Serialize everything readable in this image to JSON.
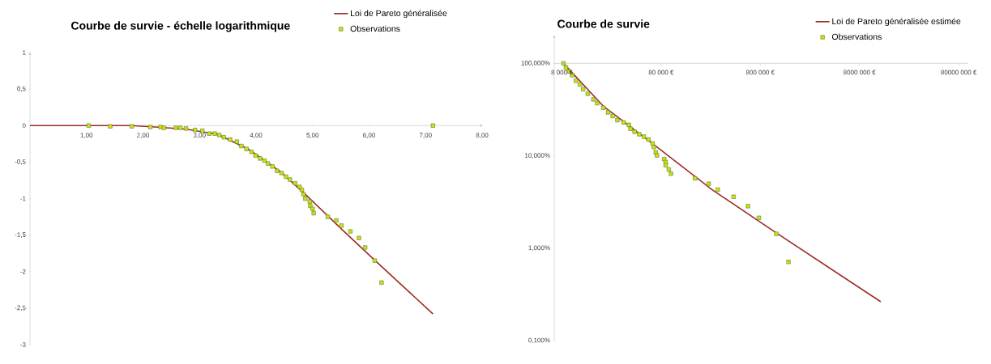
{
  "chart_data": [
    {
      "type": "scatter",
      "title": "Courbe de survie - échelle logarithmique",
      "xlim": [
        0,
        8
      ],
      "ylim": [
        -3,
        1
      ],
      "xticks": [
        {
          "value": 1,
          "label": "1,00"
        },
        {
          "value": 2,
          "label": "2,00"
        },
        {
          "value": 3,
          "label": "3,00"
        },
        {
          "value": 4,
          "label": "4,00"
        },
        {
          "value": 5,
          "label": "5,00"
        },
        {
          "value": 6,
          "label": "6,00"
        },
        {
          "value": 7,
          "label": "7,00"
        },
        {
          "value": 8,
          "label": "8,00"
        }
      ],
      "yticks": [
        -3,
        {
          "value": -2.5,
          "label": "-2,5"
        },
        -2,
        {
          "value": -1.5,
          "label": "-1,5"
        },
        -1,
        {
          "value": -0.5,
          "label": "-0,5"
        },
        0,
        {
          "value": 0.5,
          "label": "0,5"
        },
        1
      ],
      "legend": "top right",
      "grid": false,
      "series": [
        {
          "name": "Loi de Pareto généralisée",
          "type": "line",
          "color": "#9b2d24",
          "marker": "none",
          "x": [
            0,
            1.78,
            2.22,
            2.77,
            3.32,
            3.88,
            4.43,
            4.87,
            5.53,
            6.08,
            7.13
          ],
          "values": [
            0,
            0,
            -0.02,
            -0.05,
            -0.12,
            -0.33,
            -0.63,
            -0.94,
            -1.43,
            -1.83,
            -2.58
          ]
        },
        {
          "name": "Observations",
          "type": "scatter",
          "color": "#f2d000",
          "marker": "square",
          "x": [
            1.04,
            1.42,
            1.8,
            2.13,
            2.31,
            2.37,
            2.58,
            2.66,
            2.76,
            2.92,
            3.05,
            3.17,
            3.27,
            3.35,
            3.43,
            3.54,
            3.66,
            3.74,
            3.83,
            3.92,
            3.99,
            4.07,
            4.15,
            4.21,
            4.29,
            4.37,
            4.45,
            4.53,
            4.6,
            4.69,
            4.77,
            4.81,
            4.84,
            4.87,
            4.95,
            4.96,
            5.0,
            5.02,
            5.27,
            5.42,
            5.51,
            5.67,
            5.82,
            5.93,
            6.1,
            6.22,
            7.13
          ],
          "values": [
            0,
            -0.01,
            -0.01,
            -0.02,
            -0.02,
            -0.03,
            -0.03,
            -0.03,
            -0.04,
            -0.06,
            -0.07,
            -0.11,
            -0.11,
            -0.13,
            -0.16,
            -0.19,
            -0.22,
            -0.28,
            -0.32,
            -0.36,
            -0.41,
            -0.45,
            -0.48,
            -0.52,
            -0.56,
            -0.62,
            -0.65,
            -0.7,
            -0.74,
            -0.79,
            -0.84,
            -0.88,
            -0.94,
            -1.0,
            -1.04,
            -1.1,
            -1.14,
            -1.2,
            -1.25,
            -1.3,
            -1.37,
            -1.45,
            -1.54,
            -1.67,
            -1.85,
            -2.15,
            0
          ]
        }
      ]
    },
    {
      "type": "scatter",
      "title": "Courbe de survie",
      "log": "xy",
      "xlim": [
        6700,
        100000000
      ],
      "ylim": [
        0.1,
        200
      ],
      "xticks": [
        {
          "value": 8000,
          "label": "8 000 €"
        },
        {
          "value": 80000,
          "label": "80 000 €"
        },
        {
          "value": 800000,
          "label": "800 000 €"
        },
        {
          "value": 8000000,
          "label": "8000 000 €"
        },
        {
          "value": 80000000,
          "label": "80000 000 €"
        }
      ],
      "yticks": [
        {
          "value": 0.1,
          "label": "0,100%"
        },
        {
          "value": 1,
          "label": "1,000%"
        },
        {
          "value": 10,
          "label": "10,000%"
        },
        {
          "value": 100,
          "label": "100,000%"
        }
      ],
      "legend": "top right",
      "grid": false,
      "series": [
        {
          "name": "Loi de Pareto généralisée estimée",
          "type": "line",
          "color": "#9b2d24",
          "marker": "none",
          "x": [
            8300,
            20940,
            71600,
            263600,
            1119000,
            13100000
          ],
          "values": [
            100,
            34.4,
            12.6,
            4.27,
            1.5,
            0.263
          ]
        },
        {
          "name": "Observations",
          "type": "scatter",
          "color": "#f2d000",
          "marker": "square",
          "x": [
            8300,
            8790,
            9450,
            10150,
            11070,
            12160,
            13090,
            14590,
            16600,
            18120,
            20940,
            23350,
            26020,
            28990,
            33500,
            37900,
            39300,
            43200,
            48100,
            53600,
            59800,
            65700,
            67600,
            70600,
            72700,
            85900,
            89000,
            89000,
            95700,
            100700,
            175800,
            241600,
            298000,
            430600,
            601000,
            774000,
            1161000,
            1539000
          ],
          "values": [
            100,
            90.4,
            81.8,
            74.5,
            64.9,
            59.1,
            52.6,
            46.9,
            40.8,
            37.1,
            33.1,
            29.5,
            26.9,
            24.3,
            23.0,
            21.6,
            19.6,
            18.2,
            17.1,
            16.1,
            15.0,
            13.6,
            12.4,
            10.9,
            10.1,
            9.2,
            8.55,
            7.9,
            7.1,
            6.4,
            5.7,
            4.98,
            4.3,
            3.6,
            2.85,
            2.13,
            1.43,
            0.71
          ]
        }
      ]
    }
  ]
}
